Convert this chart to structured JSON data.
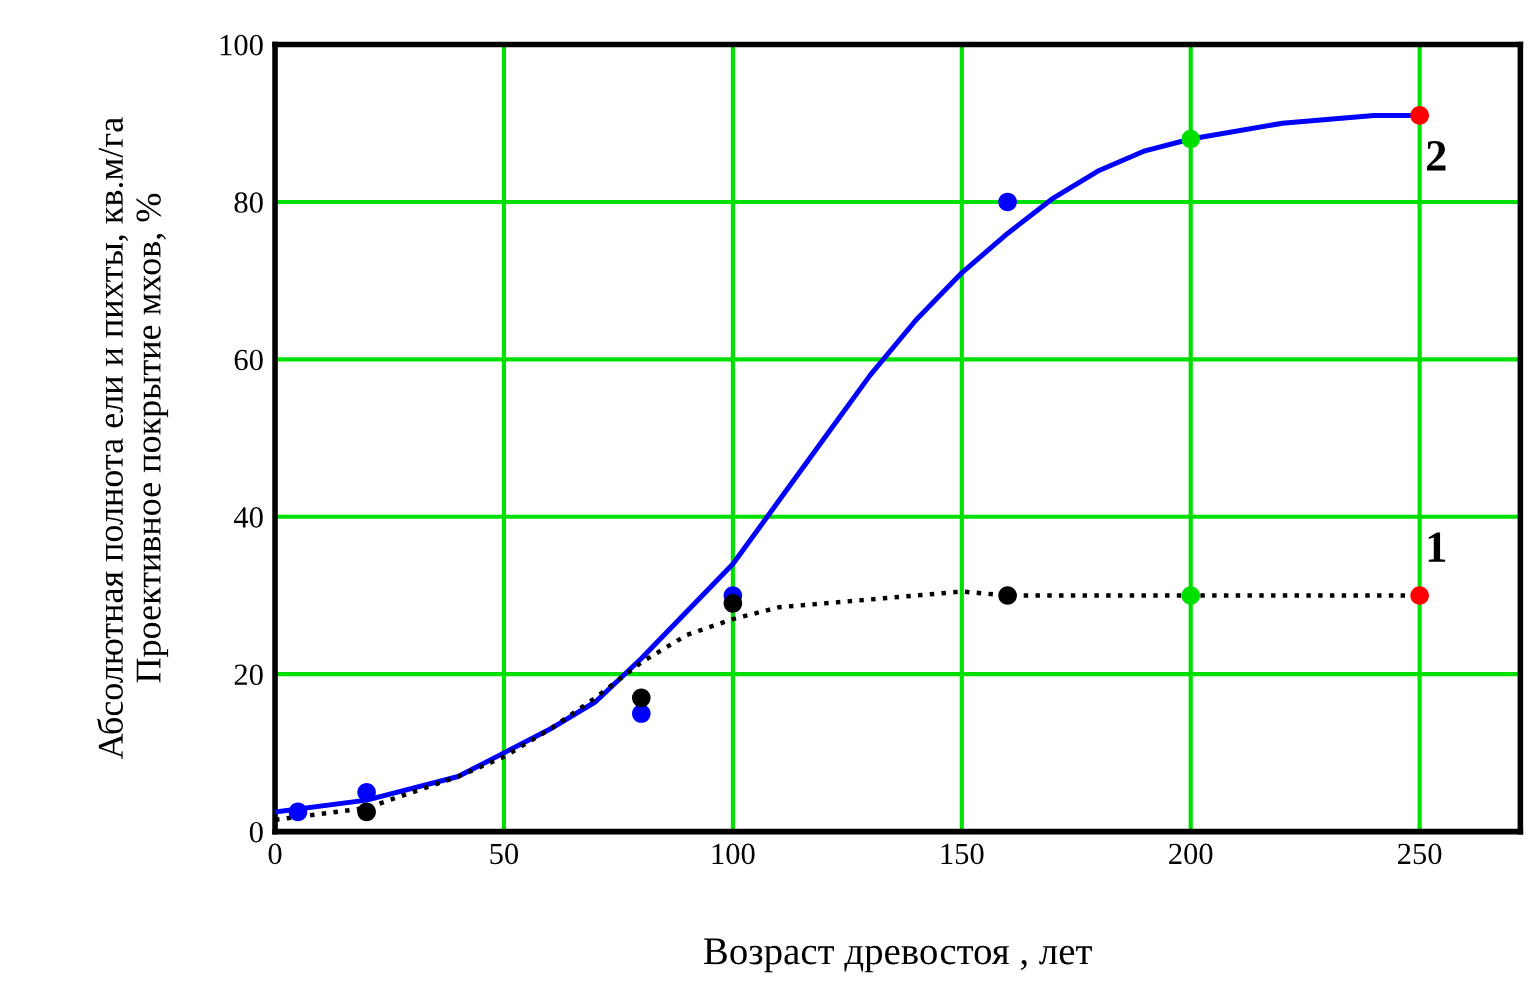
{
  "chart_data": {
    "type": "line",
    "xlabel": "Возраст древостоя , лет",
    "ylabel": "Абсолютная полнота ели и пихты, кв.м/га\nПроективное покрытие мхов, %",
    "xlim": [
      0,
      272
    ],
    "ylim": [
      0,
      100
    ],
    "xticks": [
      0,
      50,
      100,
      150,
      200,
      250
    ],
    "yticks": [
      0,
      20,
      40,
      60,
      80,
      100
    ],
    "grid": true,
    "legend": false,
    "series": [
      {
        "name": "2",
        "color": "#0000ff",
        "line_style": "solid",
        "marker": "none",
        "x": [
          0,
          20,
          40,
          50,
          60,
          70,
          80,
          90,
          100,
          110,
          120,
          130,
          140,
          150,
          160,
          170,
          180,
          190,
          200,
          220,
          240,
          250
        ],
        "values": [
          2.5,
          4,
          7,
          10,
          13,
          16.5,
          22,
          28,
          34,
          42,
          50,
          58,
          65,
          71,
          76,
          80.5,
          84,
          86.5,
          88,
          90,
          91,
          91
        ]
      },
      {
        "name": "1",
        "color": "#000000",
        "line_style": "dotted",
        "marker": "none",
        "x": [
          0,
          20,
          40,
          50,
          60,
          70,
          80,
          90,
          100,
          110,
          130,
          150,
          160,
          200,
          250
        ],
        "values": [
          1.5,
          3,
          7,
          9.5,
          13,
          17,
          21.5,
          25,
          27,
          28.5,
          29.5,
          30.5,
          30,
          30,
          30
        ]
      },
      {
        "type": "scatter",
        "marker": "circle",
        "x": [
          5,
          20,
          80,
          100,
          160,
          200,
          250
        ],
        "values": [
          2.5,
          5,
          15,
          30,
          80,
          88,
          91
        ],
        "colors": [
          "#0000ff",
          "#0000ff",
          "#0000ff",
          "#0000ff",
          "#0000ff",
          "#00e000",
          "#ff0000"
        ]
      },
      {
        "type": "scatter",
        "marker": "circle",
        "x": [
          20,
          80,
          100,
          160,
          200,
          250
        ],
        "values": [
          2.5,
          17,
          29,
          30,
          30,
          30
        ],
        "colors": [
          "#000000",
          "#000000",
          "#000000",
          "#000000",
          "#00e000",
          "#ff0000"
        ]
      }
    ]
  }
}
